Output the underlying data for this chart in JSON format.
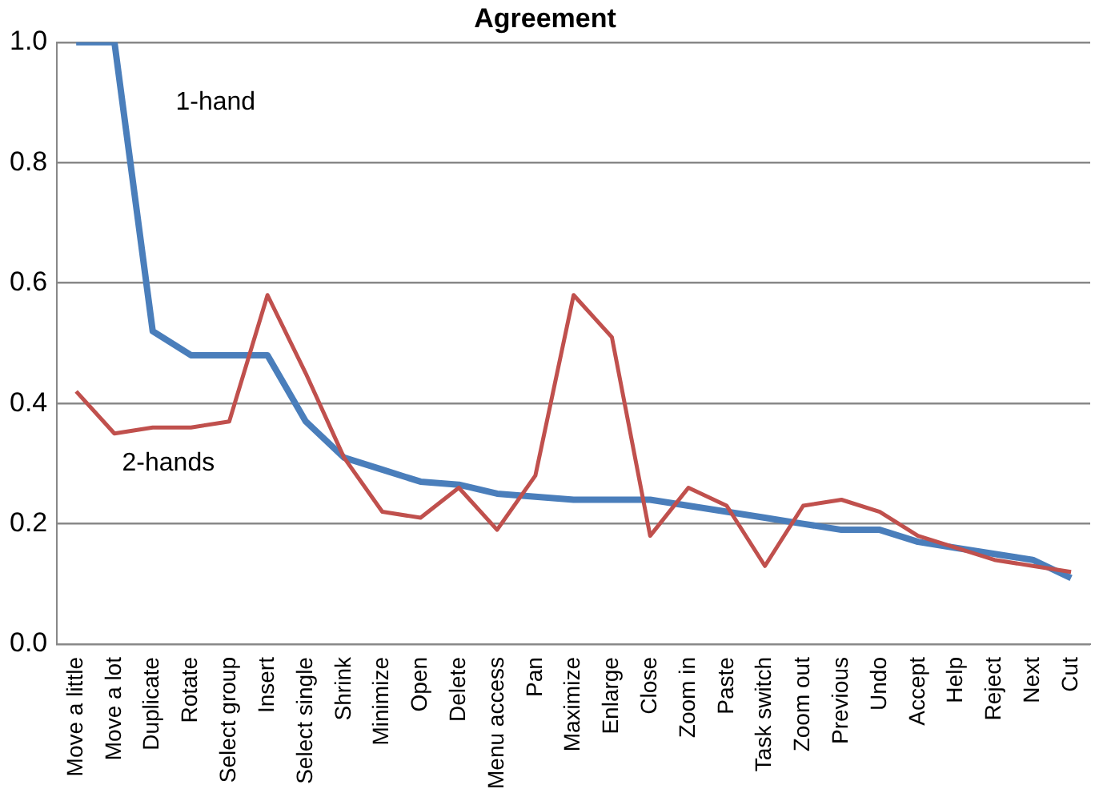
{
  "chart_data": {
    "type": "line",
    "title": "Agreement",
    "categories": [
      "Move a little",
      "Move a lot",
      "Duplicate",
      "Rotate",
      "Select group",
      "Insert",
      "Select single",
      "Shrink",
      "Minimize",
      "Open",
      "Delete",
      "Menu access",
      "Pan",
      "Maximize",
      "Enlarge",
      "Close",
      "Zoom in",
      "Paste",
      "Task switch",
      "Zoom out",
      "Previous",
      "Undo",
      "Accept",
      "Help",
      "Reject",
      "Next",
      "Cut"
    ],
    "series": [
      {
        "name": "1-hand",
        "color": "#4a7ebb",
        "values": [
          1.0,
          1.0,
          0.52,
          0.48,
          0.48,
          0.48,
          0.37,
          0.31,
          0.29,
          0.27,
          0.265,
          0.25,
          0.245,
          0.24,
          0.24,
          0.24,
          0.23,
          0.22,
          0.21,
          0.2,
          0.19,
          0.19,
          0.17,
          0.16,
          0.15,
          0.14,
          0.11
        ]
      },
      {
        "name": "2-hands",
        "color": "#c0504d",
        "values": [
          0.42,
          0.35,
          0.36,
          0.36,
          0.37,
          0.58,
          0.45,
          0.31,
          0.22,
          0.21,
          0.26,
          0.19,
          0.28,
          0.58,
          0.51,
          0.18,
          0.26,
          0.23,
          0.13,
          0.23,
          0.24,
          0.22,
          0.18,
          0.16,
          0.14,
          0.13,
          0.12
        ]
      }
    ],
    "ylim": [
      0,
      1
    ],
    "yticks": [
      {
        "value": 0,
        "label": "0.0"
      },
      {
        "value": 0.2,
        "label": "0.2"
      },
      {
        "value": 0.4,
        "label": "0.4"
      },
      {
        "value": 0.6,
        "label": "0.6"
      },
      {
        "value": 0.8,
        "label": "0.8"
      },
      {
        "value": 1,
        "label": "1.0"
      }
    ],
    "grid": "y",
    "legend": false,
    "marker": "none",
    "line_style": "solid"
  }
}
